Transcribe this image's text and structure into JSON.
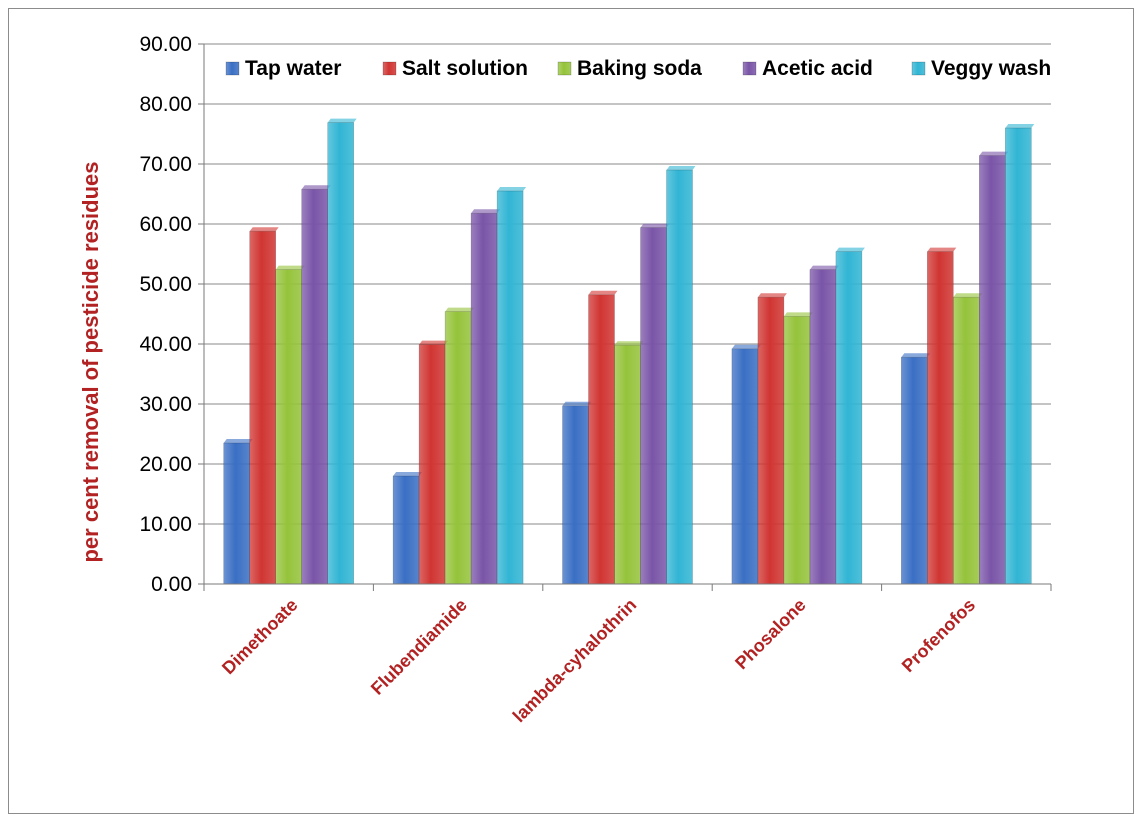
{
  "chart_data": {
    "type": "bar",
    "title": "",
    "xlabel": "",
    "ylabel": "per cent removal of pesticide residues",
    "categories": [
      "Dimethoate",
      "Flubendiamide",
      "lambda-cyhalothrin",
      "Phosalone",
      "Profenofos"
    ],
    "series": [
      {
        "name": "Tap water",
        "values": [
          23.5,
          18.0,
          29.7,
          39.2,
          37.8
        ],
        "color": "#3a6fc4"
      },
      {
        "name": "Salt solution",
        "values": [
          58.8,
          39.9,
          48.2,
          47.8,
          55.4
        ],
        "color": "#d03532"
      },
      {
        "name": "Baking soda",
        "values": [
          52.4,
          45.4,
          39.8,
          44.6,
          47.8
        ],
        "color": "#95c33b"
      },
      {
        "name": "Acetic acid",
        "values": [
          65.8,
          61.8,
          59.4,
          52.4,
          71.4
        ],
        "color": "#7a55a8"
      },
      {
        "name": "Veggy wash",
        "values": [
          76.9,
          65.5,
          69.0,
          55.4,
          76.0
        ],
        "color": "#31b5d4"
      }
    ],
    "yticks": [
      "0.00",
      "10.00",
      "20.00",
      "30.00",
      "40.00",
      "50.00",
      "60.00",
      "70.00",
      "80.00",
      "90.00"
    ],
    "ylim": [
      0,
      90
    ],
    "grid": true,
    "legend_position": "top",
    "label_color": "#b22222"
  }
}
